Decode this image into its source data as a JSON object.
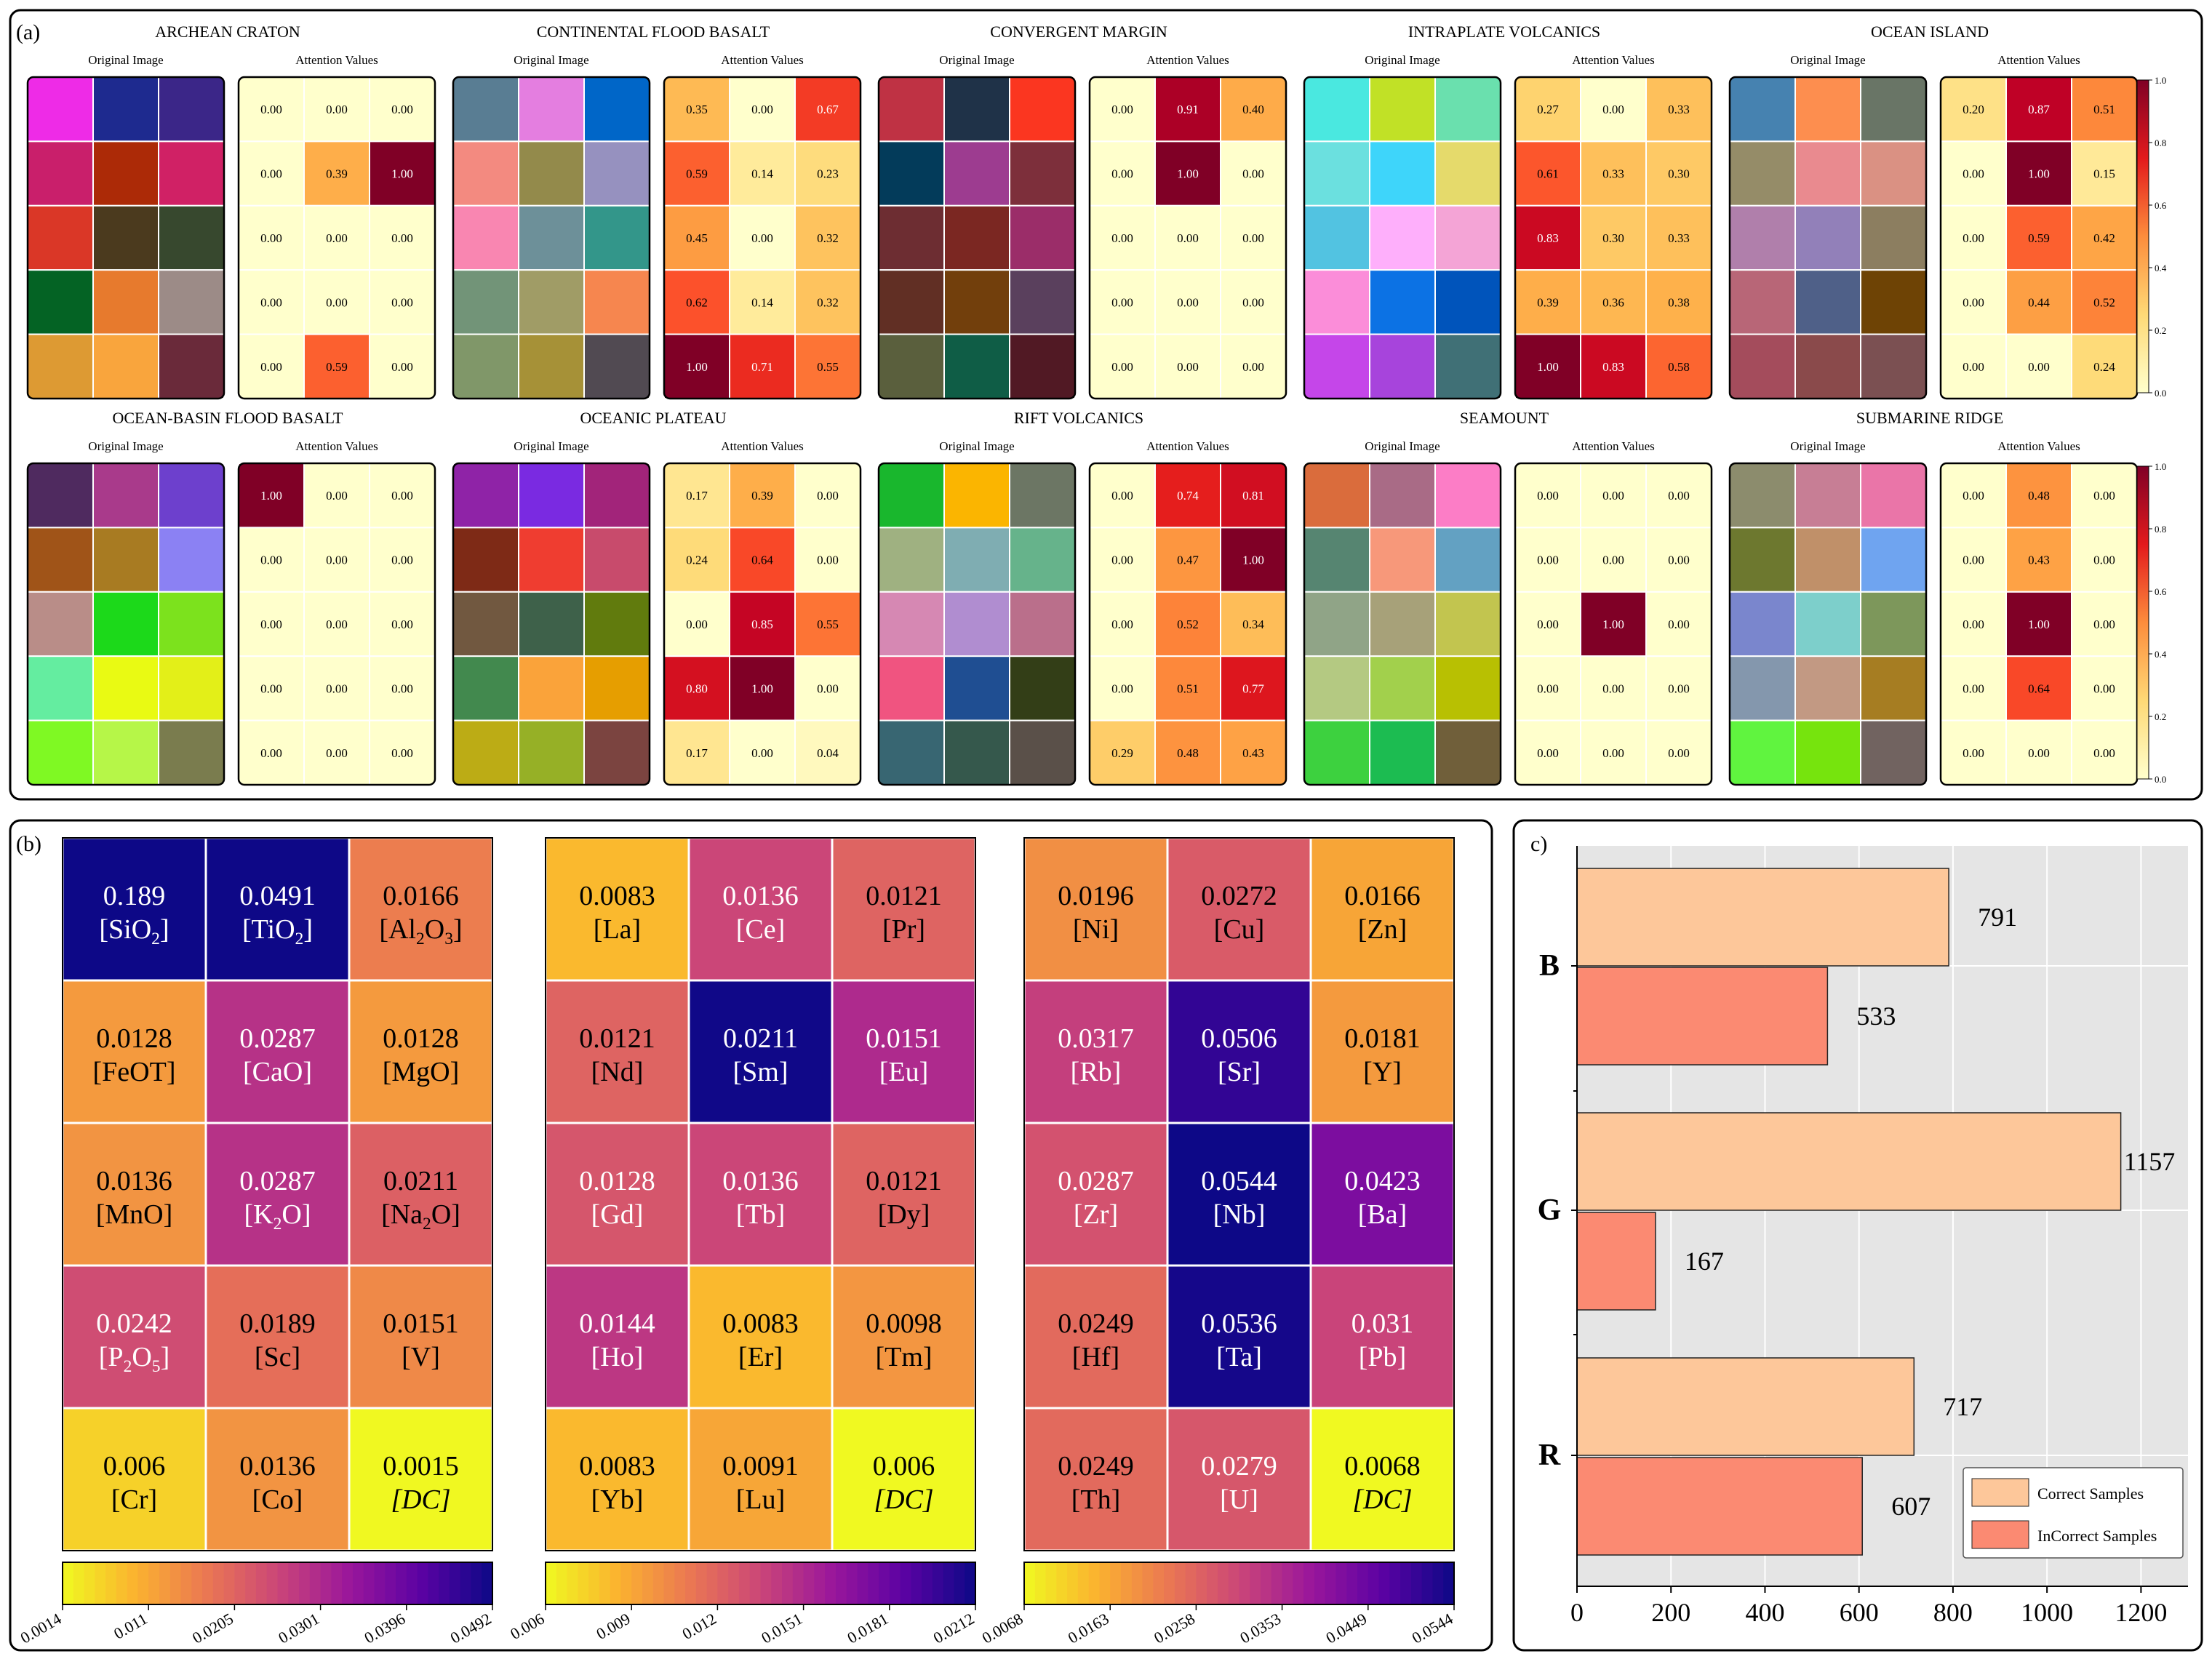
{
  "panel_a": {
    "label": "(a)",
    "sub_left_label": "Original Image",
    "sub_right_label": "Attention Values",
    "colorbar_ticks": [
      "0.0",
      "0.2",
      "0.4",
      "0.6",
      "0.8",
      "1.0"
    ],
    "charts": [
      {
        "title": "ARCHEAN CRATON",
        "colors": [
          [
            "#ee2be7",
            "#1e2a8f",
            "#3b2688"
          ],
          [
            "#c91f6b",
            "#ac2a07",
            "#d02165"
          ],
          [
            "#da3727",
            "#4b3a1e",
            "#37482e"
          ],
          [
            "#046324",
            "#e77a2d",
            "#9c8b87"
          ],
          [
            "#dd9a33",
            "#f9a53d",
            "#6a2a3a"
          ]
        ],
        "values": [
          [
            0,
            0,
            0
          ],
          [
            0,
            0.39,
            1.0
          ],
          [
            0,
            0,
            0
          ],
          [
            0,
            0,
            0
          ],
          [
            0,
            0.59,
            0
          ]
        ]
      },
      {
        "title": "CONTINENTAL FLOOD BASALT",
        "colors": [
          [
            "#597d93",
            "#e47ee0",
            "#0066c8"
          ],
          [
            "#f38a80",
            "#938a4b",
            "#9691bf"
          ],
          [
            "#f986b1",
            "#6d9099",
            "#33968a"
          ],
          [
            "#729478",
            "#a09c66",
            "#f6864f"
          ],
          [
            "#809769",
            "#a69137",
            "#514a52"
          ]
        ],
        "values": [
          [
            0.35,
            0,
            0.67
          ],
          [
            0.59,
            0.14,
            0.23
          ],
          [
            0.45,
            0,
            0.32
          ],
          [
            0.62,
            0.14,
            0.32
          ],
          [
            1.0,
            0.71,
            0.55
          ]
        ]
      },
      {
        "title": "CONVERGENT MARGIN",
        "colors": [
          [
            "#bf3244",
            "#1f3248",
            "#fb3620"
          ],
          [
            "#033b5a",
            "#9d3c90",
            "#7d2f3b"
          ],
          [
            "#6d2d32",
            "#7b2722",
            "#9b2d69"
          ],
          [
            "#612f24",
            "#723f0c",
            "#5a405d"
          ],
          [
            "#5a5f3d",
            "#0f5d46",
            "#511924"
          ]
        ],
        "values": [
          [
            0,
            0.91,
            0.4
          ],
          [
            0,
            1.0,
            0
          ],
          [
            0,
            0,
            0
          ],
          [
            0,
            0,
            0
          ],
          [
            0,
            0,
            0
          ]
        ]
      },
      {
        "title": "INTRAPLATE VOLCANICS",
        "colors": [
          [
            "#4ae8e0",
            "#c1e126",
            "#6ae0ae"
          ],
          [
            "#6be0df",
            "#3ed5fa",
            "#e5da6b"
          ],
          [
            "#52c3e1",
            "#feaffb",
            "#f4a4d6"
          ],
          [
            "#fb8dd9",
            "#0c72e4",
            "#0054bb"
          ],
          [
            "#c546e9",
            "#a744dc",
            "#407076"
          ]
        ],
        "values": [
          [
            0.27,
            0,
            0.33
          ],
          [
            0.61,
            0.33,
            0.3
          ],
          [
            0.83,
            0.3,
            0.33
          ],
          [
            0.39,
            0.36,
            0.38
          ],
          [
            1.0,
            0.83,
            0.58
          ]
        ]
      },
      {
        "title": "OCEAN ISLAND",
        "colors": [
          [
            "#4682b0",
            "#fd8e4f",
            "#697566"
          ],
          [
            "#958c68",
            "#e98a8f",
            "#da9183"
          ],
          [
            "#b07fab",
            "#9280b9",
            "#8c7e60"
          ],
          [
            "#b86677",
            "#4f6088",
            "#6e4305"
          ],
          [
            "#a44c5c",
            "#8a4a4b",
            "#7b5052"
          ]
        ],
        "values": [
          [
            0.2,
            0.87,
            0.51
          ],
          [
            0,
            1.0,
            0.15
          ],
          [
            0,
            0.59,
            0.42
          ],
          [
            0,
            0.44,
            0.52
          ],
          [
            0,
            0,
            0.24
          ]
        ]
      },
      {
        "title": "OCEAN-BASIN FLOOD BASALT",
        "colors": [
          [
            "#4f2a5f",
            "#a93a8b",
            "#6d40cd"
          ],
          [
            "#a05418",
            "#a87b22",
            "#8b81f3"
          ],
          [
            "#b98d88",
            "#1cd91a",
            "#7ce21d"
          ],
          [
            "#64eda0",
            "#e9fa13",
            "#e3ef18"
          ],
          [
            "#7ff923",
            "#b6f648",
            "#7a7c4e"
          ]
        ],
        "values": [
          [
            1.0,
            0,
            0
          ],
          [
            0,
            0,
            0
          ],
          [
            0,
            0,
            0
          ],
          [
            0,
            0,
            0
          ],
          [
            0,
            0,
            0
          ]
        ]
      },
      {
        "title": "OCEANIC PLATEAU",
        "colors": [
          [
            "#8f23a7",
            "#7a2ae1",
            "#a2247a"
          ],
          [
            "#7e2a16",
            "#ef3d30",
            "#c84b6c"
          ],
          [
            "#715840",
            "#3e614a",
            "#617b0d"
          ],
          [
            "#42894e",
            "#faa33a",
            "#e69e00"
          ],
          [
            "#bcac15",
            "#96b026",
            "#7b4440"
          ]
        ],
        "values": [
          [
            0.17,
            0.39,
            0
          ],
          [
            0.24,
            0.64,
            0
          ],
          [
            0,
            0.85,
            0.55
          ],
          [
            0.8,
            1.0,
            0
          ],
          [
            0.17,
            0,
            0.04
          ]
        ]
      },
      {
        "title": "RIFT VOLCANICS",
        "colors": [
          [
            "#19b72d",
            "#fbb500",
            "#6c7664"
          ],
          [
            "#9fb181",
            "#7fadb2",
            "#66b38b"
          ],
          [
            "#d688b3",
            "#b08dd0",
            "#ba6f8b"
          ],
          [
            "#f05480",
            "#1f4e92",
            "#333e17"
          ],
          [
            "#386672",
            "#35584c",
            "#5a5049"
          ]
        ],
        "values": [
          [
            0,
            0.74,
            0.81
          ],
          [
            0,
            0.47,
            1.0
          ],
          [
            0,
            0.52,
            0.34
          ],
          [
            0,
            0.51,
            0.77
          ],
          [
            0.29,
            0.48,
            0.43
          ]
        ]
      },
      {
        "title": "SEAMOUNT",
        "colors": [
          [
            "#da6c3c",
            "#a96b86",
            "#fc7dc6"
          ],
          [
            "#568571",
            "#f7987a",
            "#63a1c2"
          ],
          [
            "#90a487",
            "#a7a179",
            "#c2c54f"
          ],
          [
            "#b4c982",
            "#a2d04c",
            "#b8c002"
          ],
          [
            "#3dd13f",
            "#1cbc51",
            "#705f3a"
          ]
        ],
        "values": [
          [
            0,
            0,
            0
          ],
          [
            0,
            0,
            0
          ],
          [
            0,
            1.0,
            0
          ],
          [
            0,
            0,
            0
          ],
          [
            0,
            0,
            0
          ]
        ]
      },
      {
        "title": "SUBMARINE RIDGE",
        "colors": [
          [
            "#8c8c6d",
            "#c77e95",
            "#ea75a8"
          ],
          [
            "#6d782f",
            "#c09069",
            "#6fa4f0"
          ],
          [
            "#7a86cd",
            "#7dcfcb",
            "#7d975b"
          ],
          [
            "#8497ad",
            "#c29983",
            "#a67d22"
          ],
          [
            "#60f43f",
            "#76e40d",
            "#716360"
          ]
        ],
        "values": [
          [
            0,
            0.48,
            0
          ],
          [
            0,
            0.43,
            0
          ],
          [
            0,
            1.0,
            0
          ],
          [
            0,
            0.64,
            0
          ],
          [
            0,
            0,
            0
          ]
        ]
      }
    ]
  },
  "panel_b": {
    "label": "(b)",
    "dc_label": "[DC]",
    "grids": [
      {
        "vmin": 0.0014,
        "vmax": 0.0492,
        "ticks": [
          "0.0014",
          "0.011",
          "0.0205",
          "0.0301",
          "0.0396",
          "0.0492"
        ],
        "cells": [
          [
            [
              "0.189",
              "SiO",
              "2",
              ""
            ],
            [
              "0.0491",
              "TiO",
              "2",
              ""
            ],
            [
              "0.0166",
              "Al",
              "2",
              "O",
              "3"
            ]
          ],
          [
            [
              "0.0128",
              "FeOT"
            ],
            [
              "0.0287",
              "CaO"
            ],
            [
              "0.0128",
              "MgO"
            ]
          ],
          [
            [
              "0.0136",
              "MnO"
            ],
            [
              "0.0287",
              "K",
              "2",
              "O"
            ],
            [
              "0.0211",
              "Na",
              "2",
              "O"
            ]
          ],
          [
            [
              "0.0242",
              "P",
              "2",
              "O",
              "5"
            ],
            [
              "0.0189",
              "Sc"
            ],
            [
              "0.0151",
              "V"
            ]
          ],
          [
            [
              "0.006",
              "Cr"
            ],
            [
              "0.0136",
              "Co"
            ],
            [
              "0.0015",
              "DC"
            ]
          ]
        ]
      },
      {
        "vmin": 0.006,
        "vmax": 0.0212,
        "ticks": [
          "0.006",
          "0.009",
          "0.012",
          "0.0151",
          "0.0181",
          "0.0212"
        ],
        "cells": [
          [
            [
              "0.0083",
              "La"
            ],
            [
              "0.0136",
              "Ce"
            ],
            [
              "0.0121",
              "Pr"
            ]
          ],
          [
            [
              "0.0121",
              "Nd"
            ],
            [
              "0.0211",
              "Sm"
            ],
            [
              "0.0151",
              "Eu"
            ]
          ],
          [
            [
              "0.0128",
              "Gd"
            ],
            [
              "0.0136",
              "Tb"
            ],
            [
              "0.0121",
              "Dy"
            ]
          ],
          [
            [
              "0.0144",
              "Ho"
            ],
            [
              "0.0083",
              "Er"
            ],
            [
              "0.0098",
              "Tm"
            ]
          ],
          [
            [
              "0.0083",
              "Yb"
            ],
            [
              "0.0091",
              "Lu"
            ],
            [
              "0.006",
              "DC"
            ]
          ]
        ]
      },
      {
        "vmin": 0.0068,
        "vmax": 0.0544,
        "ticks": [
          "0.0068",
          "0.0163",
          "0.0258",
          "0.0353",
          "0.0449",
          "0.0544"
        ],
        "cells": [
          [
            [
              "0.0196",
              "Ni"
            ],
            [
              "0.0272",
              "Cu"
            ],
            [
              "0.0166",
              "Zn"
            ]
          ],
          [
            [
              "0.0317",
              "Rb"
            ],
            [
              "0.0506",
              "Sr"
            ],
            [
              "0.0181",
              "Y"
            ]
          ],
          [
            [
              "0.0287",
              "Zr"
            ],
            [
              "0.0544",
              "Nb"
            ],
            [
              "0.0423",
              "Ba"
            ]
          ],
          [
            [
              "0.0249",
              "Hf"
            ],
            [
              "0.0536",
              "Ta"
            ],
            [
              "0.031",
              "Pb"
            ]
          ],
          [
            [
              "0.0249",
              "Th"
            ],
            [
              "0.0279",
              "U"
            ],
            [
              "0.0068",
              "DC"
            ]
          ]
        ]
      }
    ]
  },
  "panel_c": {
    "label": "c)",
    "chart_data": {
      "type": "bar",
      "orientation": "horizontal",
      "categories": [
        "B",
        "G",
        "R"
      ],
      "series": [
        {
          "name": "Correct Samples",
          "values": [
            791,
            1157,
            717
          ],
          "color": "#fdc79a"
        },
        {
          "name": "InCorrect Samples",
          "values": [
            533,
            167,
            607
          ],
          "color": "#fb8a72"
        }
      ],
      "xticks": [
        "0",
        "200",
        "400",
        "600",
        "800",
        "1000",
        "1200"
      ],
      "xlim": [
        0,
        1300
      ],
      "grid": true,
      "legend_position": "bottom-right"
    }
  }
}
